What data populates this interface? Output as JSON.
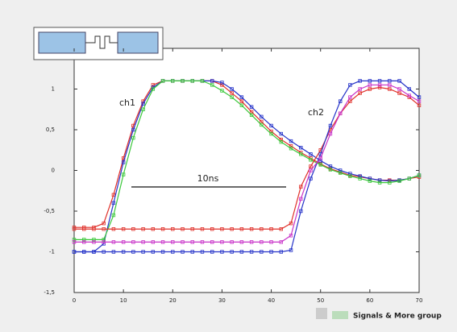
{
  "chart_data": {
    "type": "line",
    "x": [
      0,
      2,
      4,
      6,
      8,
      10,
      12,
      14,
      16,
      18,
      20,
      22,
      24,
      26,
      28,
      30,
      32,
      34,
      36,
      38,
      40,
      42,
      44,
      46,
      48,
      50,
      52,
      54,
      56,
      58,
      60,
      62,
      64,
      66,
      68,
      70
    ],
    "series": [
      {
        "color": "#e0302a",
        "values": [
          -0.7,
          -0.7,
          -0.7,
          -0.65,
          -0.3,
          0.15,
          0.55,
          0.85,
          1.05,
          1.1,
          1.1,
          1.1,
          1.1,
          1.1,
          1.1,
          1.05,
          0.95,
          0.85,
          0.72,
          0.6,
          0.48,
          0.38,
          0.3,
          0.22,
          0.15,
          0.08,
          0.02,
          -0.02,
          -0.06,
          -0.08,
          -0.1,
          -0.12,
          -0.12,
          -0.12,
          -0.1,
          -0.08
        ]
      },
      {
        "color": "#2432c8",
        "values": [
          -1.0,
          -1.0,
          -1.0,
          -0.9,
          -0.4,
          0.1,
          0.5,
          0.82,
          1.02,
          1.1,
          1.1,
          1.1,
          1.1,
          1.1,
          1.1,
          1.08,
          1.0,
          0.9,
          0.78,
          0.66,
          0.55,
          0.45,
          0.36,
          0.28,
          0.2,
          0.12,
          0.05,
          0.0,
          -0.04,
          -0.07,
          -0.1,
          -0.12,
          -0.13,
          -0.12,
          -0.1,
          -0.06
        ]
      },
      {
        "color": "#3cc83c",
        "values": [
          -0.85,
          -0.85,
          -0.85,
          -0.85,
          -0.55,
          -0.05,
          0.4,
          0.75,
          1.0,
          1.1,
          1.1,
          1.1,
          1.1,
          1.1,
          1.05,
          0.98,
          0.9,
          0.8,
          0.68,
          0.56,
          0.45,
          0.35,
          0.27,
          0.2,
          0.13,
          0.07,
          0.01,
          -0.03,
          -0.07,
          -0.1,
          -0.13,
          -0.15,
          -0.15,
          -0.13,
          -0.1,
          -0.06
        ]
      },
      {
        "color": "#e0302a",
        "values": [
          -0.72,
          -0.72,
          -0.72,
          -0.72,
          -0.72,
          -0.72,
          -0.72,
          -0.72,
          -0.72,
          -0.72,
          -0.72,
          -0.72,
          -0.72,
          -0.72,
          -0.72,
          -0.72,
          -0.72,
          -0.72,
          -0.72,
          -0.72,
          -0.72,
          -0.72,
          -0.65,
          -0.2,
          0.05,
          0.25,
          0.5,
          0.7,
          0.85,
          0.95,
          1.0,
          1.02,
          1.0,
          0.95,
          0.9,
          0.8
        ]
      },
      {
        "color": "#2432c8",
        "values": [
          -1.0,
          -1.0,
          -1.0,
          -1.0,
          -1.0,
          -1.0,
          -1.0,
          -1.0,
          -1.0,
          -1.0,
          -1.0,
          -1.0,
          -1.0,
          -1.0,
          -1.0,
          -1.0,
          -1.0,
          -1.0,
          -1.0,
          -1.0,
          -1.0,
          -1.0,
          -0.98,
          -0.5,
          -0.1,
          0.2,
          0.55,
          0.85,
          1.05,
          1.1,
          1.1,
          1.1,
          1.1,
          1.1,
          1.0,
          0.9
        ]
      },
      {
        "color": "#c832c8",
        "values": [
          -0.88,
          -0.88,
          -0.88,
          -0.88,
          -0.88,
          -0.88,
          -0.88,
          -0.88,
          -0.88,
          -0.88,
          -0.88,
          -0.88,
          -0.88,
          -0.88,
          -0.88,
          -0.88,
          -0.88,
          -0.88,
          -0.88,
          -0.88,
          -0.88,
          -0.88,
          -0.8,
          -0.35,
          0.0,
          0.15,
          0.45,
          0.7,
          0.9,
          1.0,
          1.05,
          1.05,
          1.05,
          1.0,
          0.92,
          0.85
        ]
      }
    ],
    "xlim": [
      0,
      70
    ],
    "xticks": [
      0,
      10,
      20,
      30,
      40,
      50,
      60,
      70
    ],
    "ylim": [
      -1.5,
      1.5
    ],
    "yticks": [
      {
        "value": -1.5,
        "label": "-1,5"
      },
      -1,
      {
        "value": -0.5,
        "label": "-0,5"
      },
      0,
      {
        "value": 0.5,
        "label": "0,5"
      },
      1
    ],
    "annotations": [
      "ch1",
      "ch2",
      "10ns"
    ],
    "footer": "Signals & More group"
  }
}
